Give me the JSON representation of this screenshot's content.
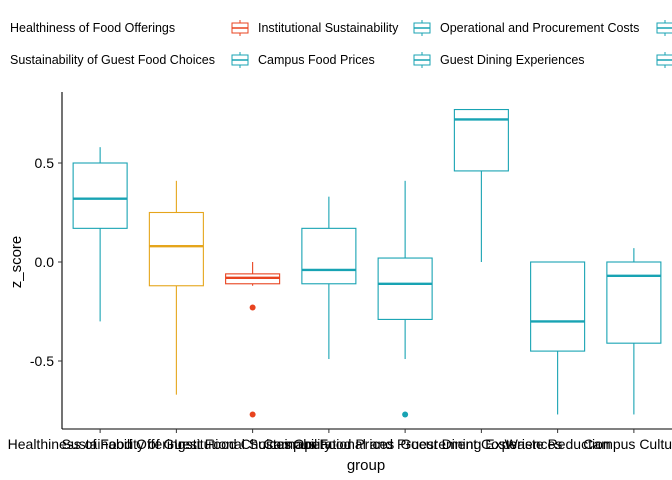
{
  "chart_data": {
    "type": "box",
    "xlabel": "group",
    "ylabel": "z_score",
    "ylim": [
      -0.85,
      0.85
    ],
    "yticks": [
      -0.5,
      0.0,
      0.5
    ],
    "ytick_labels": [
      "-0.5",
      "0.0",
      "0.5"
    ],
    "grid": false,
    "legend_position": "top",
    "legend": [
      {
        "label": "Healthiness of Food Offerings",
        "color": null
      },
      {
        "label": "Institutional Sustainability",
        "color": "#e8431f"
      },
      {
        "label": "Operational and Procurement Costs",
        "color": "#18a3b3"
      },
      {
        "label": "",
        "color": "#18a3b3"
      },
      {
        "label": "Sustainability of Guest Food Choices",
        "color": null
      },
      {
        "label": "Campus Food Prices",
        "color": "#18a3b3"
      },
      {
        "label": "Guest Dining Experiences",
        "color": "#18a3b3"
      },
      {
        "label": "",
        "color": "#18a3b3"
      }
    ],
    "categories": [
      "Healthiness of Food Offerings",
      "Sustainability of Guest Food Choices",
      "Institutional Sustainability",
      "Campus Food Prices",
      "Operational and Procurement Costs",
      "Guest Dining Experiences",
      "Waste Reduction",
      "Campus Culture"
    ],
    "boxes": [
      {
        "group": "Healthiness of Food Offerings",
        "color": "#18a3b3",
        "min": -0.3,
        "q1": 0.17,
        "median": 0.32,
        "q3": 0.5,
        "max": 0.58,
        "outliers": []
      },
      {
        "group": "Sustainability of Guest Food Choices",
        "color": "#e5a51b",
        "min": -0.67,
        "q1": -0.12,
        "median": 0.08,
        "q3": 0.25,
        "max": 0.41,
        "outliers": []
      },
      {
        "group": "Institutional Sustainability",
        "color": "#e8431f",
        "min": -0.12,
        "q1": -0.11,
        "median": -0.08,
        "q3": -0.06,
        "max": 0.0,
        "outliers": [
          -0.23,
          -0.77
        ]
      },
      {
        "group": "Campus Food Prices",
        "color": "#18a3b3",
        "min": -0.49,
        "q1": -0.11,
        "median": -0.04,
        "q3": 0.17,
        "max": 0.33,
        "outliers": []
      },
      {
        "group": "Operational and Procurement Costs",
        "color": "#18a3b3",
        "min": -0.49,
        "q1": -0.29,
        "median": -0.11,
        "q3": 0.02,
        "max": 0.41,
        "outliers": [
          -0.77
        ]
      },
      {
        "group": "Guest Dining Experiences",
        "color": "#18a3b3",
        "min": 0.0,
        "q1": 0.46,
        "median": 0.72,
        "q3": 0.77,
        "max": 0.77,
        "outliers": []
      },
      {
        "group": "Waste Reduction",
        "color": "#18a3b3",
        "min": -0.77,
        "q1": -0.45,
        "median": -0.3,
        "q3": 0.0,
        "max": 0.0,
        "outliers": []
      },
      {
        "group": "Campus Culture",
        "color": "#18a3b3",
        "min": -0.77,
        "q1": -0.41,
        "median": -0.07,
        "q3": 0.0,
        "max": 0.07,
        "outliers": []
      }
    ]
  }
}
